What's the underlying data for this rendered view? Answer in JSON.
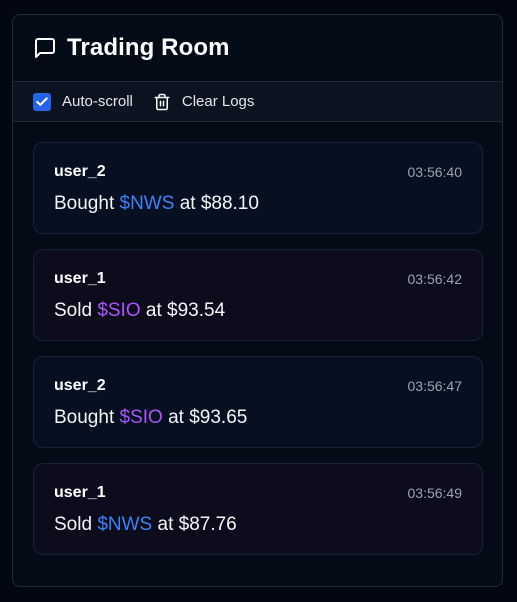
{
  "header": {
    "title": "Trading Room",
    "icon": "message-square-icon"
  },
  "toolbar": {
    "autoscroll_label": "Auto-scroll",
    "autoscroll_checked": true,
    "clear_label": "Clear Logs",
    "clear_icon": "trash-icon"
  },
  "colors": {
    "accent": "#2563eb",
    "ticker_nws": "#3b82f6",
    "ticker_sio": "#a855f7"
  },
  "logs": [
    {
      "user": "user_2",
      "time": "03:56:40",
      "action": "Bought",
      "ticker": "$NWS",
      "price_text": "at $88.10"
    },
    {
      "user": "user_1",
      "time": "03:56:42",
      "action": "Sold",
      "ticker": "$SIO",
      "price_text": "at $93.54"
    },
    {
      "user": "user_2",
      "time": "03:56:47",
      "action": "Bought",
      "ticker": "$SIO",
      "price_text": "at $93.65"
    },
    {
      "user": "user_1",
      "time": "03:56:49",
      "action": "Sold",
      "ticker": "$NWS",
      "price_text": "at $87.76"
    }
  ]
}
